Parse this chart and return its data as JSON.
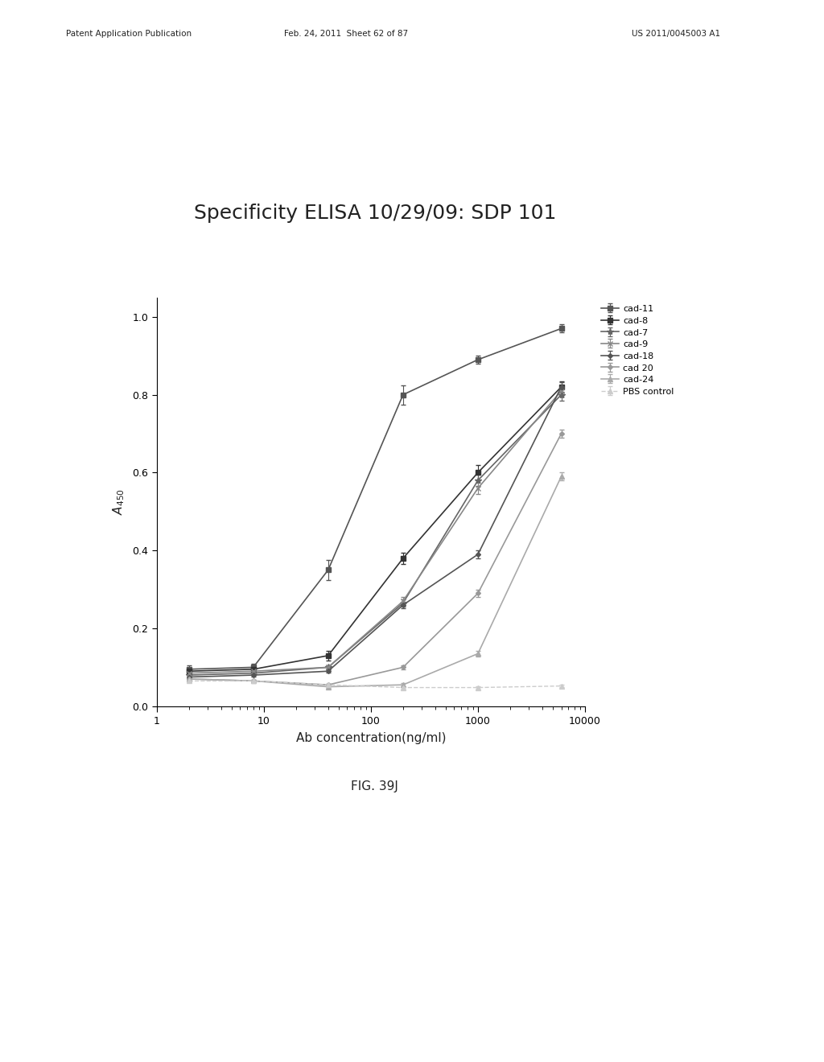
{
  "title": "Specificity ELISA 10/29/09: SDP 101",
  "xlabel": "Ab concentration(ng/ml)",
  "ylabel": "$A_{450}$",
  "xlim": [
    1,
    10000
  ],
  "ylim": [
    0.0,
    1.05
  ],
  "yticks": [
    0.0,
    0.2,
    0.4,
    0.6,
    0.8,
    1.0
  ],
  "series": [
    {
      "label": "cad-11",
      "x": [
        2,
        8,
        40,
        200,
        1000,
        6000
      ],
      "y": [
        0.095,
        0.1,
        0.35,
        0.8,
        0.89,
        0.97
      ],
      "yerr": [
        0.01,
        0.01,
        0.025,
        0.025,
        0.01,
        0.01
      ],
      "color": "#555555",
      "marker": "s",
      "linestyle": "-",
      "linewidth": 1.2,
      "markersize": 4
    },
    {
      "label": "cad-8",
      "x": [
        2,
        8,
        40,
        200,
        1000,
        6000
      ],
      "y": [
        0.09,
        0.095,
        0.13,
        0.38,
        0.6,
        0.82
      ],
      "yerr": [
        0.008,
        0.008,
        0.012,
        0.015,
        0.02,
        0.015
      ],
      "color": "#333333",
      "marker": "s",
      "linestyle": "-",
      "linewidth": 1.2,
      "markersize": 4
    },
    {
      "label": "cad-7",
      "x": [
        2,
        8,
        40,
        200,
        1000,
        6000
      ],
      "y": [
        0.08,
        0.085,
        0.1,
        0.265,
        0.58,
        0.8
      ],
      "yerr": [
        0.005,
        0.005,
        0.005,
        0.01,
        0.015,
        0.015
      ],
      "color": "#666666",
      "marker": "*",
      "linestyle": "-",
      "linewidth": 1.2,
      "markersize": 6
    },
    {
      "label": "cad-9",
      "x": [
        2,
        8,
        40,
        200,
        1000,
        6000
      ],
      "y": [
        0.085,
        0.09,
        0.1,
        0.27,
        0.56,
        0.81
      ],
      "yerr": [
        0.005,
        0.005,
        0.005,
        0.01,
        0.015,
        0.015
      ],
      "color": "#888888",
      "marker": "x",
      "linestyle": "-",
      "linewidth": 1.2,
      "markersize": 5
    },
    {
      "label": "cad-18",
      "x": [
        2,
        8,
        40,
        200,
        1000,
        6000
      ],
      "y": [
        0.075,
        0.08,
        0.09,
        0.26,
        0.39,
        0.82
      ],
      "yerr": [
        0.004,
        0.004,
        0.004,
        0.008,
        0.01,
        0.012
      ],
      "color": "#555555",
      "marker": "D",
      "linestyle": "-",
      "linewidth": 1.2,
      "markersize": 3
    },
    {
      "label": "cad 20",
      "x": [
        2,
        8,
        40,
        200,
        1000,
        6000
      ],
      "y": [
        0.07,
        0.065,
        0.055,
        0.1,
        0.29,
        0.7
      ],
      "yerr": [
        0.003,
        0.003,
        0.003,
        0.005,
        0.01,
        0.01
      ],
      "color": "#999999",
      "marker": "D",
      "linestyle": "-",
      "linewidth": 1.2,
      "markersize": 3
    },
    {
      "label": "cad-24",
      "x": [
        2,
        8,
        40,
        200,
        1000,
        6000
      ],
      "y": [
        0.07,
        0.065,
        0.05,
        0.055,
        0.135,
        0.59
      ],
      "yerr": [
        0.003,
        0.003,
        0.003,
        0.005,
        0.008,
        0.01
      ],
      "color": "#aaaaaa",
      "marker": "^",
      "linestyle": "-",
      "linewidth": 1.2,
      "markersize": 4
    },
    {
      "label": "PBS control",
      "x": [
        2,
        8,
        40,
        200,
        1000,
        6000
      ],
      "y": [
        0.065,
        0.065,
        0.055,
        0.048,
        0.048,
        0.052
      ],
      "yerr": [
        0.003,
        0.003,
        0.003,
        0.003,
        0.003,
        0.003
      ],
      "color": "#cccccc",
      "marker": "^",
      "linestyle": "--",
      "linewidth": 1.0,
      "markersize": 4
    }
  ],
  "header_left": "Patent Application Publication",
  "header_mid": "Feb. 24, 2011  Sheet 62 of 87",
  "header_right": "US 2011/0045003 A1",
  "fig_label": "FIG. 39J",
  "background_color": "#ffffff",
  "title_fontsize": 18,
  "axis_fontsize": 11,
  "legend_fontsize": 8,
  "tick_fontsize": 9
}
